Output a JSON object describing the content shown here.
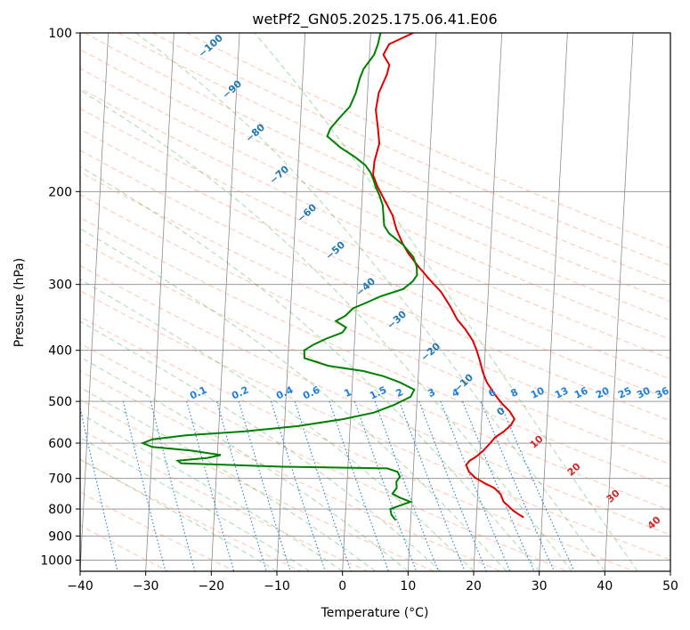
{
  "chart_data": {
    "type": "line",
    "title": "wetPf2_GN05.2025.175.06.41.E06",
    "xlabel": "Temperature (°C)",
    "ylabel": "Pressure (hPa)",
    "xlim": [
      -40,
      50
    ],
    "ylim": [
      1050,
      100
    ],
    "y_scale": "log",
    "x_ticks": [
      "−40",
      "−30",
      "−20",
      "−10",
      "0",
      "10",
      "20",
      "30",
      "40",
      "50"
    ],
    "y_ticks": [
      "100",
      "200",
      "300",
      "400",
      "500",
      "600",
      "700",
      "800",
      "900",
      "1000"
    ],
    "grid": true,
    "series": [
      {
        "color": "#e00000",
        "points": [
          [
            27.2,
            830
          ],
          [
            26.5,
            820
          ],
          [
            25.5,
            805
          ],
          [
            24.8,
            790
          ],
          [
            24.0,
            775
          ],
          [
            23.5,
            750
          ],
          [
            22.5,
            730
          ],
          [
            21.0,
            715
          ],
          [
            19.5,
            698
          ],
          [
            18.5,
            680
          ],
          [
            18.0,
            660
          ],
          [
            18.5,
            648
          ],
          [
            19.5,
            636
          ],
          [
            20.5,
            620
          ],
          [
            21.5,
            600
          ],
          [
            22.2,
            585
          ],
          [
            23.5,
            570
          ],
          [
            24.5,
            555
          ],
          [
            25.0,
            540
          ],
          [
            24.2,
            522
          ],
          [
            23.0,
            505
          ],
          [
            21.8,
            485
          ],
          [
            20.5,
            460
          ],
          [
            19.8,
            440
          ],
          [
            19.3,
            420
          ],
          [
            18.7,
            400
          ],
          [
            18.0,
            383
          ],
          [
            16.8,
            365
          ],
          [
            15.5,
            350
          ],
          [
            14.3,
            330
          ],
          [
            12.8,
            310
          ],
          [
            11.0,
            294
          ],
          [
            9.2,
            278
          ],
          [
            7.5,
            262
          ],
          [
            6.5,
            250
          ],
          [
            5.5,
            236
          ],
          [
            4.8,
            222
          ],
          [
            3.5,
            208
          ],
          [
            2.3,
            196
          ],
          [
            1.5,
            186
          ],
          [
            1.6,
            175
          ],
          [
            2.2,
            162
          ],
          [
            1.8,
            150
          ],
          [
            1.4,
            140
          ],
          [
            1.7,
            130
          ],
          [
            2.8,
            120
          ],
          [
            3.1,
            115
          ],
          [
            2.1,
            110
          ],
          [
            2.9,
            105
          ],
          [
            6.5,
            100
          ]
        ]
      },
      {
        "color": "#008000",
        "points": [
          [
            7.7,
            840
          ],
          [
            7.0,
            820
          ],
          [
            6.8,
            800
          ],
          [
            8.0,
            790
          ],
          [
            9.8,
            775
          ],
          [
            8.0,
            760
          ],
          [
            7.0,
            748
          ],
          [
            7.6,
            730
          ],
          [
            7.5,
            710
          ],
          [
            8.0,
            695
          ],
          [
            7.6,
            680
          ],
          [
            6.0,
            670
          ],
          [
            -10.0,
            665
          ],
          [
            -25.5,
            655
          ],
          [
            -26.0,
            648
          ],
          [
            -21.5,
            640
          ],
          [
            -19.5,
            632
          ],
          [
            -24.0,
            620
          ],
          [
            -30.0,
            610
          ],
          [
            -31.5,
            600
          ],
          [
            -30.0,
            590
          ],
          [
            -25.0,
            580
          ],
          [
            -16.0,
            570
          ],
          [
            -8.0,
            557
          ],
          [
            -1.0,
            540
          ],
          [
            3.5,
            525
          ],
          [
            6.5,
            508
          ],
          [
            9.0,
            490
          ],
          [
            9.5,
            475
          ],
          [
            7.2,
            460
          ],
          [
            4.7,
            448
          ],
          [
            1.6,
            438
          ],
          [
            -3.8,
            428
          ],
          [
            -7.5,
            414
          ],
          [
            -7.6,
            400
          ],
          [
            -6.2,
            390
          ],
          [
            -4.3,
            380
          ],
          [
            -1.9,
            370
          ],
          [
            -1.4,
            362
          ],
          [
            -3.0,
            352
          ],
          [
            -1.6,
            344
          ],
          [
            -0.5,
            333
          ],
          [
            1.7,
            324
          ],
          [
            3.6,
            316
          ],
          [
            7.0,
            306
          ],
          [
            8.4,
            296
          ],
          [
            9.0,
            288
          ],
          [
            8.9,
            278
          ],
          [
            8.3,
            266
          ],
          [
            6.6,
            252
          ],
          [
            4.4,
            240
          ],
          [
            3.6,
            232
          ],
          [
            3.4,
            222
          ],
          [
            3.2,
            212
          ],
          [
            2.6,
            203
          ],
          [
            2.0,
            196
          ],
          [
            1.6,
            190
          ],
          [
            1.1,
            184
          ],
          [
            0.2,
            178
          ],
          [
            -1.4,
            172
          ],
          [
            -3.7,
            165
          ],
          [
            -5.8,
            157
          ],
          [
            -5.4,
            152
          ],
          [
            -4.1,
            145
          ],
          [
            -2.6,
            138
          ],
          [
            -1.8,
            130
          ],
          [
            -1.3,
            122
          ],
          [
            -0.8,
            117
          ],
          [
            0.7,
            110
          ],
          [
            1.2,
            105
          ],
          [
            1.5,
            100
          ]
        ]
      }
    ],
    "annotations": {
      "dry_adiabats_C": [
        "−100",
        "−90",
        "−80",
        "−70",
        "−60",
        "−50",
        "−40",
        "−30",
        "−20",
        "−10",
        "0",
        "10",
        "20",
        "30",
        "40"
      ],
      "mixing_ratios_gkg": [
        "0.1",
        "0.2",
        "0.4",
        "0.6",
        "1",
        "1.5",
        "2",
        "3",
        "4",
        "6",
        "8",
        "10",
        "13",
        "16",
        "20",
        "25",
        "30",
        "36"
      ]
    },
    "colors": {
      "temperature": "#e00000",
      "dewpoint": "#008000",
      "dry_adiabat": "#ff7f50",
      "moist_adiabat": "#2ca02c",
      "mixing_ratio": "#1e7fdc",
      "isotherm_label": "#1f77b4",
      "warm_label": "#d62728",
      "grid": "#8c8c8c"
    }
  }
}
